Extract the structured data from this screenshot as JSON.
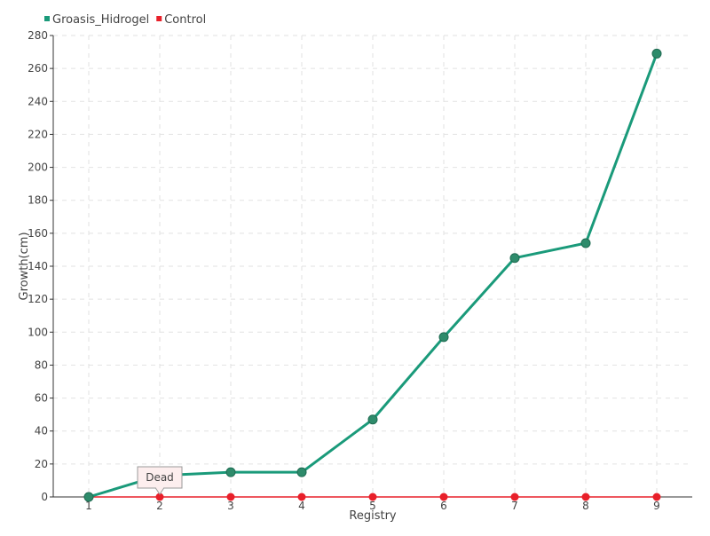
{
  "chart_data": {
    "type": "line",
    "xlabel": "Registry",
    "ylabel": "Growth(cm)",
    "categories": [
      "1",
      "2",
      "3",
      "4",
      "5",
      "6",
      "7",
      "8",
      "9"
    ],
    "ylim": [
      0,
      280
    ],
    "yticks": [
      0,
      20,
      40,
      60,
      80,
      100,
      120,
      140,
      160,
      180,
      200,
      220,
      240,
      260,
      280
    ],
    "grid": true,
    "legend_position": "top-left",
    "series": [
      {
        "name": "Groasis_Hidrogel",
        "color": "#1a9a7a",
        "marker_color": "#2e8b6b",
        "values": [
          0,
          13,
          15,
          15,
          47,
          97,
          145,
          154,
          269
        ]
      },
      {
        "name": "Control",
        "color": "#e8202a",
        "marker_color": "#e8202a",
        "values": [
          0,
          0,
          0,
          0,
          0,
          0,
          0,
          0,
          0
        ]
      }
    ],
    "annotations": [
      {
        "text": "Dead",
        "series": "Control",
        "category": "2"
      }
    ]
  }
}
